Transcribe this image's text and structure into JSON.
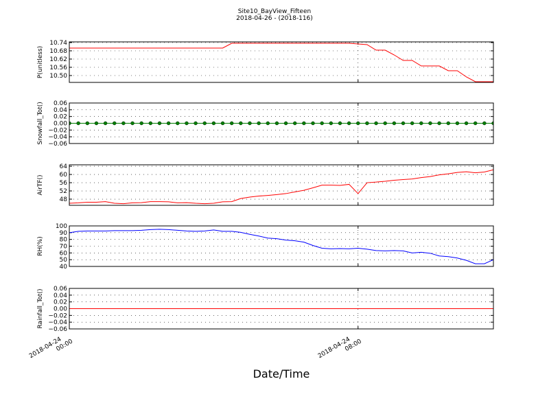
{
  "chart_data": {
    "type": "line",
    "title": "Site10_BayView_Fifteen",
    "subtitle": "2018-04-26 - (2018-116)",
    "xlabel": "Date/Time",
    "x": [
      "2018-04-24 00:00",
      "2018-04-24 00:15",
      "2018-04-24 00:30",
      "2018-04-24 00:45",
      "2018-04-24 01:00",
      "2018-04-24 01:15",
      "2018-04-24 01:30",
      "2018-04-24 01:45",
      "2018-04-24 02:00",
      "2018-04-24 02:15",
      "2018-04-24 02:30",
      "2018-04-24 02:45",
      "2018-04-24 03:00",
      "2018-04-24 03:15",
      "2018-04-24 03:30",
      "2018-04-24 03:45",
      "2018-04-24 04:00",
      "2018-04-24 04:15",
      "2018-04-24 04:30",
      "2018-04-24 04:45",
      "2018-04-24 05:00",
      "2018-04-24 05:15",
      "2018-04-24 05:30",
      "2018-04-24 05:45",
      "2018-04-24 06:00",
      "2018-04-24 06:15",
      "2018-04-24 06:30",
      "2018-04-24 06:45",
      "2018-04-24 07:00",
      "2018-04-24 07:15",
      "2018-04-24 07:30",
      "2018-04-24 07:45",
      "2018-04-24 08:00",
      "2018-04-24 08:15",
      "2018-04-24 08:30",
      "2018-04-24 08:45",
      "2018-04-24 09:00",
      "2018-04-24 09:15",
      "2018-04-24 09:30",
      "2018-04-24 09:45",
      "2018-04-24 10:00",
      "2018-04-24 10:15",
      "2018-04-24 10:30",
      "2018-04-24 10:45",
      "2018-04-24 11:00",
      "2018-04-24 11:15",
      "2018-04-24 11:30",
      "2018-04-24 11:45"
    ],
    "xlim": [
      "2018-04-24 00:00",
      "2018-04-24 11:45"
    ],
    "xticks": [
      "2018-04-24 00:00",
      "2018-04-24 08:00"
    ],
    "grid": true,
    "panels": [
      {
        "type": "line",
        "ylabel": "P(unitless)",
        "ylim": [
          10.45,
          10.745
        ],
        "yticks": [
          {
            "value": 10.5,
            "label": "10.50"
          },
          10.56,
          10.62,
          10.68,
          10.74
        ],
        "series": [
          {
            "color": "#ff0000",
            "marker": false,
            "values": [
              10.7,
              10.7,
              10.7,
              10.7,
              10.7,
              10.7,
              10.7,
              10.7,
              10.7,
              10.7,
              10.7,
              10.7,
              10.7,
              10.7,
              10.7,
              10.7,
              10.7,
              10.7,
              10.735,
              10.735,
              10.735,
              10.735,
              10.735,
              10.735,
              10.735,
              10.735,
              10.735,
              10.735,
              10.735,
              10.735,
              10.735,
              10.735,
              10.73,
              10.725,
              10.685,
              10.685,
              10.65,
              10.61,
              10.61,
              10.57,
              10.57,
              10.57,
              10.535,
              10.535,
              10.49,
              10.455,
              10.455,
              10.455
            ]
          }
        ]
      },
      {
        "type": "line",
        "ylabel": "Snowfall_Tot()",
        "ylim": [
          -0.06,
          0.06
        ],
        "yticks": [
          {
            "value": -0.06,
            "label": "−0.06"
          },
          {
            "value": -0.04,
            "label": "−0.04"
          },
          {
            "value": -0.02,
            "label": "−0.02"
          },
          {
            "value": 0,
            "label": "0.00"
          },
          0.02,
          0.04,
          0.06
        ],
        "series": [
          {
            "color": "#008000",
            "marker": true,
            "values": [
              0,
              0,
              0,
              0,
              0,
              0,
              0,
              0,
              0,
              0,
              0,
              0,
              0,
              0,
              0,
              0,
              0,
              0,
              0,
              0,
              0,
              0,
              0,
              0,
              0,
              0,
              0,
              0,
              0,
              0,
              0,
              0,
              0,
              0,
              0,
              0,
              0,
              0,
              0,
              0,
              0,
              0,
              0,
              0,
              0,
              0,
              0,
              0
            ]
          }
        ]
      },
      {
        "type": "line",
        "ylabel": "AirTF()",
        "ylim": [
          45,
          64.7
        ],
        "yticks": [
          48,
          52,
          56,
          60,
          64
        ],
        "series": [
          {
            "color": "#ff0000",
            "marker": false,
            "values": [
              46.0,
              46.2,
              46.5,
              46.5,
              46.8,
              46.0,
              45.8,
              46.2,
              46.3,
              46.8,
              46.8,
              46.7,
              46.2,
              46.3,
              46.0,
              45.8,
              46.0,
              46.7,
              46.8,
              48.3,
              49.0,
              49.5,
              49.8,
              50.2,
              50.7,
              51.5,
              52.3,
              53.5,
              54.8,
              54.8,
              54.7,
              55.2,
              50.7,
              56.0,
              56.3,
              56.7,
              57.2,
              57.5,
              57.8,
              58.5,
              59.0,
              59.8,
              60.3,
              61.0,
              61.3,
              60.8,
              61.2,
              62.3
            ]
          }
        ]
      },
      {
        "type": "line",
        "ylabel": "RH(%)",
        "ylim": [
          40,
          100
        ],
        "yticks": [
          40,
          50,
          60,
          70,
          80,
          90,
          100
        ],
        "series": [
          {
            "color": "#0000ff",
            "marker": false,
            "values": [
              90,
              92,
              92.5,
              92.5,
              92.5,
              93,
              93,
              93,
              93.5,
              94.5,
              95,
              94.5,
              93.5,
              92.5,
              92,
              92.5,
              94,
              92,
              92,
              90.5,
              87.5,
              85,
              82,
              81,
              79,
              78,
              76,
              71,
              67,
              66,
              66.5,
              66,
              67,
              65.5,
              63.5,
              63,
              63.5,
              63,
              60,
              61,
              59.5,
              55.5,
              54.5,
              52.5,
              49,
              44,
              44,
              50
            ]
          }
        ]
      },
      {
        "type": "line",
        "ylabel": "Rainfall_Tot()",
        "ylim": [
          -0.06,
          0.06
        ],
        "yticks": [
          {
            "value": -0.06,
            "label": "−0.06"
          },
          {
            "value": -0.04,
            "label": "−0.04"
          },
          {
            "value": -0.02,
            "label": "−0.02"
          },
          {
            "value": 0,
            "label": "0.00"
          },
          0.02,
          0.04,
          0.06
        ],
        "series": [
          {
            "color": "#ff0000",
            "marker": false,
            "values": [
              0,
              0,
              0,
              0,
              0,
              0,
              0,
              0,
              0,
              0,
              0,
              0,
              0,
              0,
              0,
              0,
              0,
              0,
              0,
              0,
              0,
              0,
              0,
              0,
              0,
              0,
              0,
              0,
              0,
              0,
              0,
              0,
              0,
              0,
              0,
              0,
              0,
              0,
              0,
              0,
              0,
              0,
              0,
              0,
              0,
              0,
              0,
              0
            ]
          }
        ]
      }
    ]
  }
}
